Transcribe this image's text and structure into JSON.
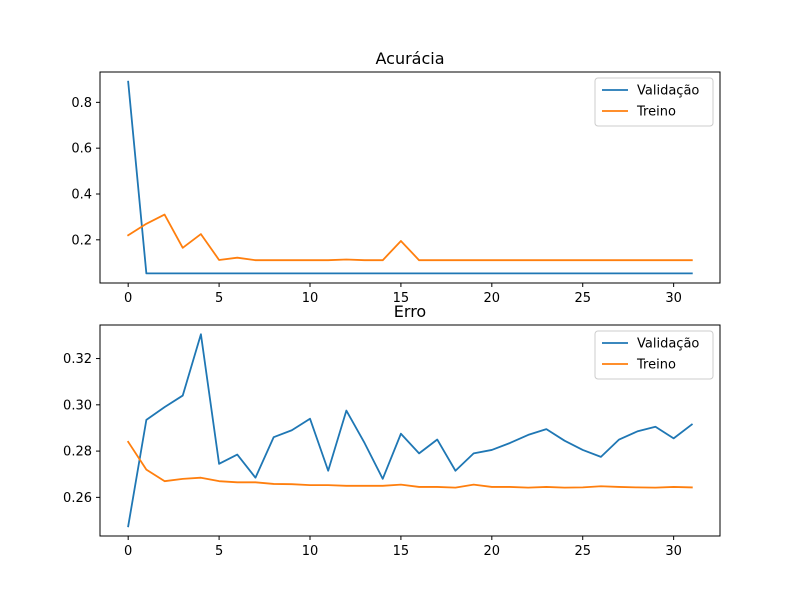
{
  "chart_data": [
    {
      "type": "line",
      "title": "Acurácia",
      "xlabel": "",
      "ylabel": "",
      "xlim": [
        -1.55,
        32.55
      ],
      "ylim": [
        0.0115,
        0.9325
      ],
      "xticks": [
        0,
        5,
        10,
        15,
        20,
        25,
        30
      ],
      "yticks": [
        0.2,
        0.4,
        0.6,
        0.8
      ],
      "ytick_labels": [
        "0.2",
        "0.4",
        "0.6",
        "0.8"
      ],
      "legend_position": "top-right",
      "x": [
        0,
        1,
        2,
        3,
        4,
        5,
        6,
        7,
        8,
        9,
        10,
        11,
        12,
        13,
        14,
        15,
        16,
        17,
        18,
        19,
        20,
        21,
        22,
        23,
        24,
        25,
        26,
        27,
        28,
        29,
        30,
        31
      ],
      "series": [
        {
          "name": "Validação",
          "color": "#1f77b4",
          "values": [
            0.89,
            0.0535,
            0.0535,
            0.0535,
            0.0535,
            0.0535,
            0.0535,
            0.0535,
            0.0535,
            0.0535,
            0.0535,
            0.0535,
            0.0535,
            0.0535,
            0.0535,
            0.0535,
            0.0535,
            0.0535,
            0.0535,
            0.0535,
            0.0535,
            0.0535,
            0.0535,
            0.0535,
            0.0535,
            0.0535,
            0.0535,
            0.0535,
            0.0535,
            0.0535,
            0.0535,
            0.0535
          ]
        },
        {
          "name": "Treino",
          "color": "#ff7f0e",
          "values": [
            0.22,
            0.27,
            0.31,
            0.165,
            0.225,
            0.112,
            0.122,
            0.111,
            0.111,
            0.111,
            0.111,
            0.111,
            0.114,
            0.111,
            0.111,
            0.195,
            0.111,
            0.111,
            0.111,
            0.111,
            0.111,
            0.111,
            0.111,
            0.111,
            0.111,
            0.111,
            0.111,
            0.111,
            0.111,
            0.111,
            0.111,
            0.111
          ]
        }
      ]
    },
    {
      "type": "line",
      "title": "Erro",
      "xlabel": "",
      "ylabel": "",
      "xlim": [
        -1.55,
        32.55
      ],
      "ylim": [
        0.2433,
        0.3345
      ],
      "xticks": [
        0,
        5,
        10,
        15,
        20,
        25,
        30
      ],
      "yticks": [
        0.26,
        0.28,
        0.3,
        0.32
      ],
      "ytick_labels": [
        "0.26",
        "0.28",
        "0.30",
        "0.32"
      ],
      "legend_position": "top-right",
      "x": [
        0,
        1,
        2,
        3,
        4,
        5,
        6,
        7,
        8,
        9,
        10,
        11,
        12,
        13,
        14,
        15,
        16,
        17,
        18,
        19,
        20,
        21,
        22,
        23,
        24,
        25,
        26,
        27,
        28,
        29,
        30,
        31
      ],
      "series": [
        {
          "name": "Validação",
          "color": "#1f77b4",
          "values": [
            0.2475,
            0.2935,
            0.299,
            0.304,
            0.3305,
            0.2745,
            0.2785,
            0.2685,
            0.286,
            0.289,
            0.294,
            0.2715,
            0.2975,
            0.2835,
            0.268,
            0.2875,
            0.279,
            0.285,
            0.2715,
            0.279,
            0.2805,
            0.2835,
            0.287,
            0.2895,
            0.2845,
            0.2805,
            0.2775,
            0.285,
            0.2885,
            0.2905,
            0.2855,
            0.2915
          ]
        },
        {
          "name": "Treino",
          "color": "#ff7f0e",
          "values": [
            0.284,
            0.272,
            0.267,
            0.268,
            0.2685,
            0.267,
            0.2665,
            0.2665,
            0.2658,
            0.2657,
            0.2653,
            0.2653,
            0.265,
            0.265,
            0.265,
            0.2655,
            0.2645,
            0.2645,
            0.2642,
            0.2655,
            0.2645,
            0.2645,
            0.2642,
            0.2645,
            0.2642,
            0.2643,
            0.2648,
            0.2645,
            0.2643,
            0.2642,
            0.2645,
            0.2643
          ]
        }
      ]
    }
  ]
}
